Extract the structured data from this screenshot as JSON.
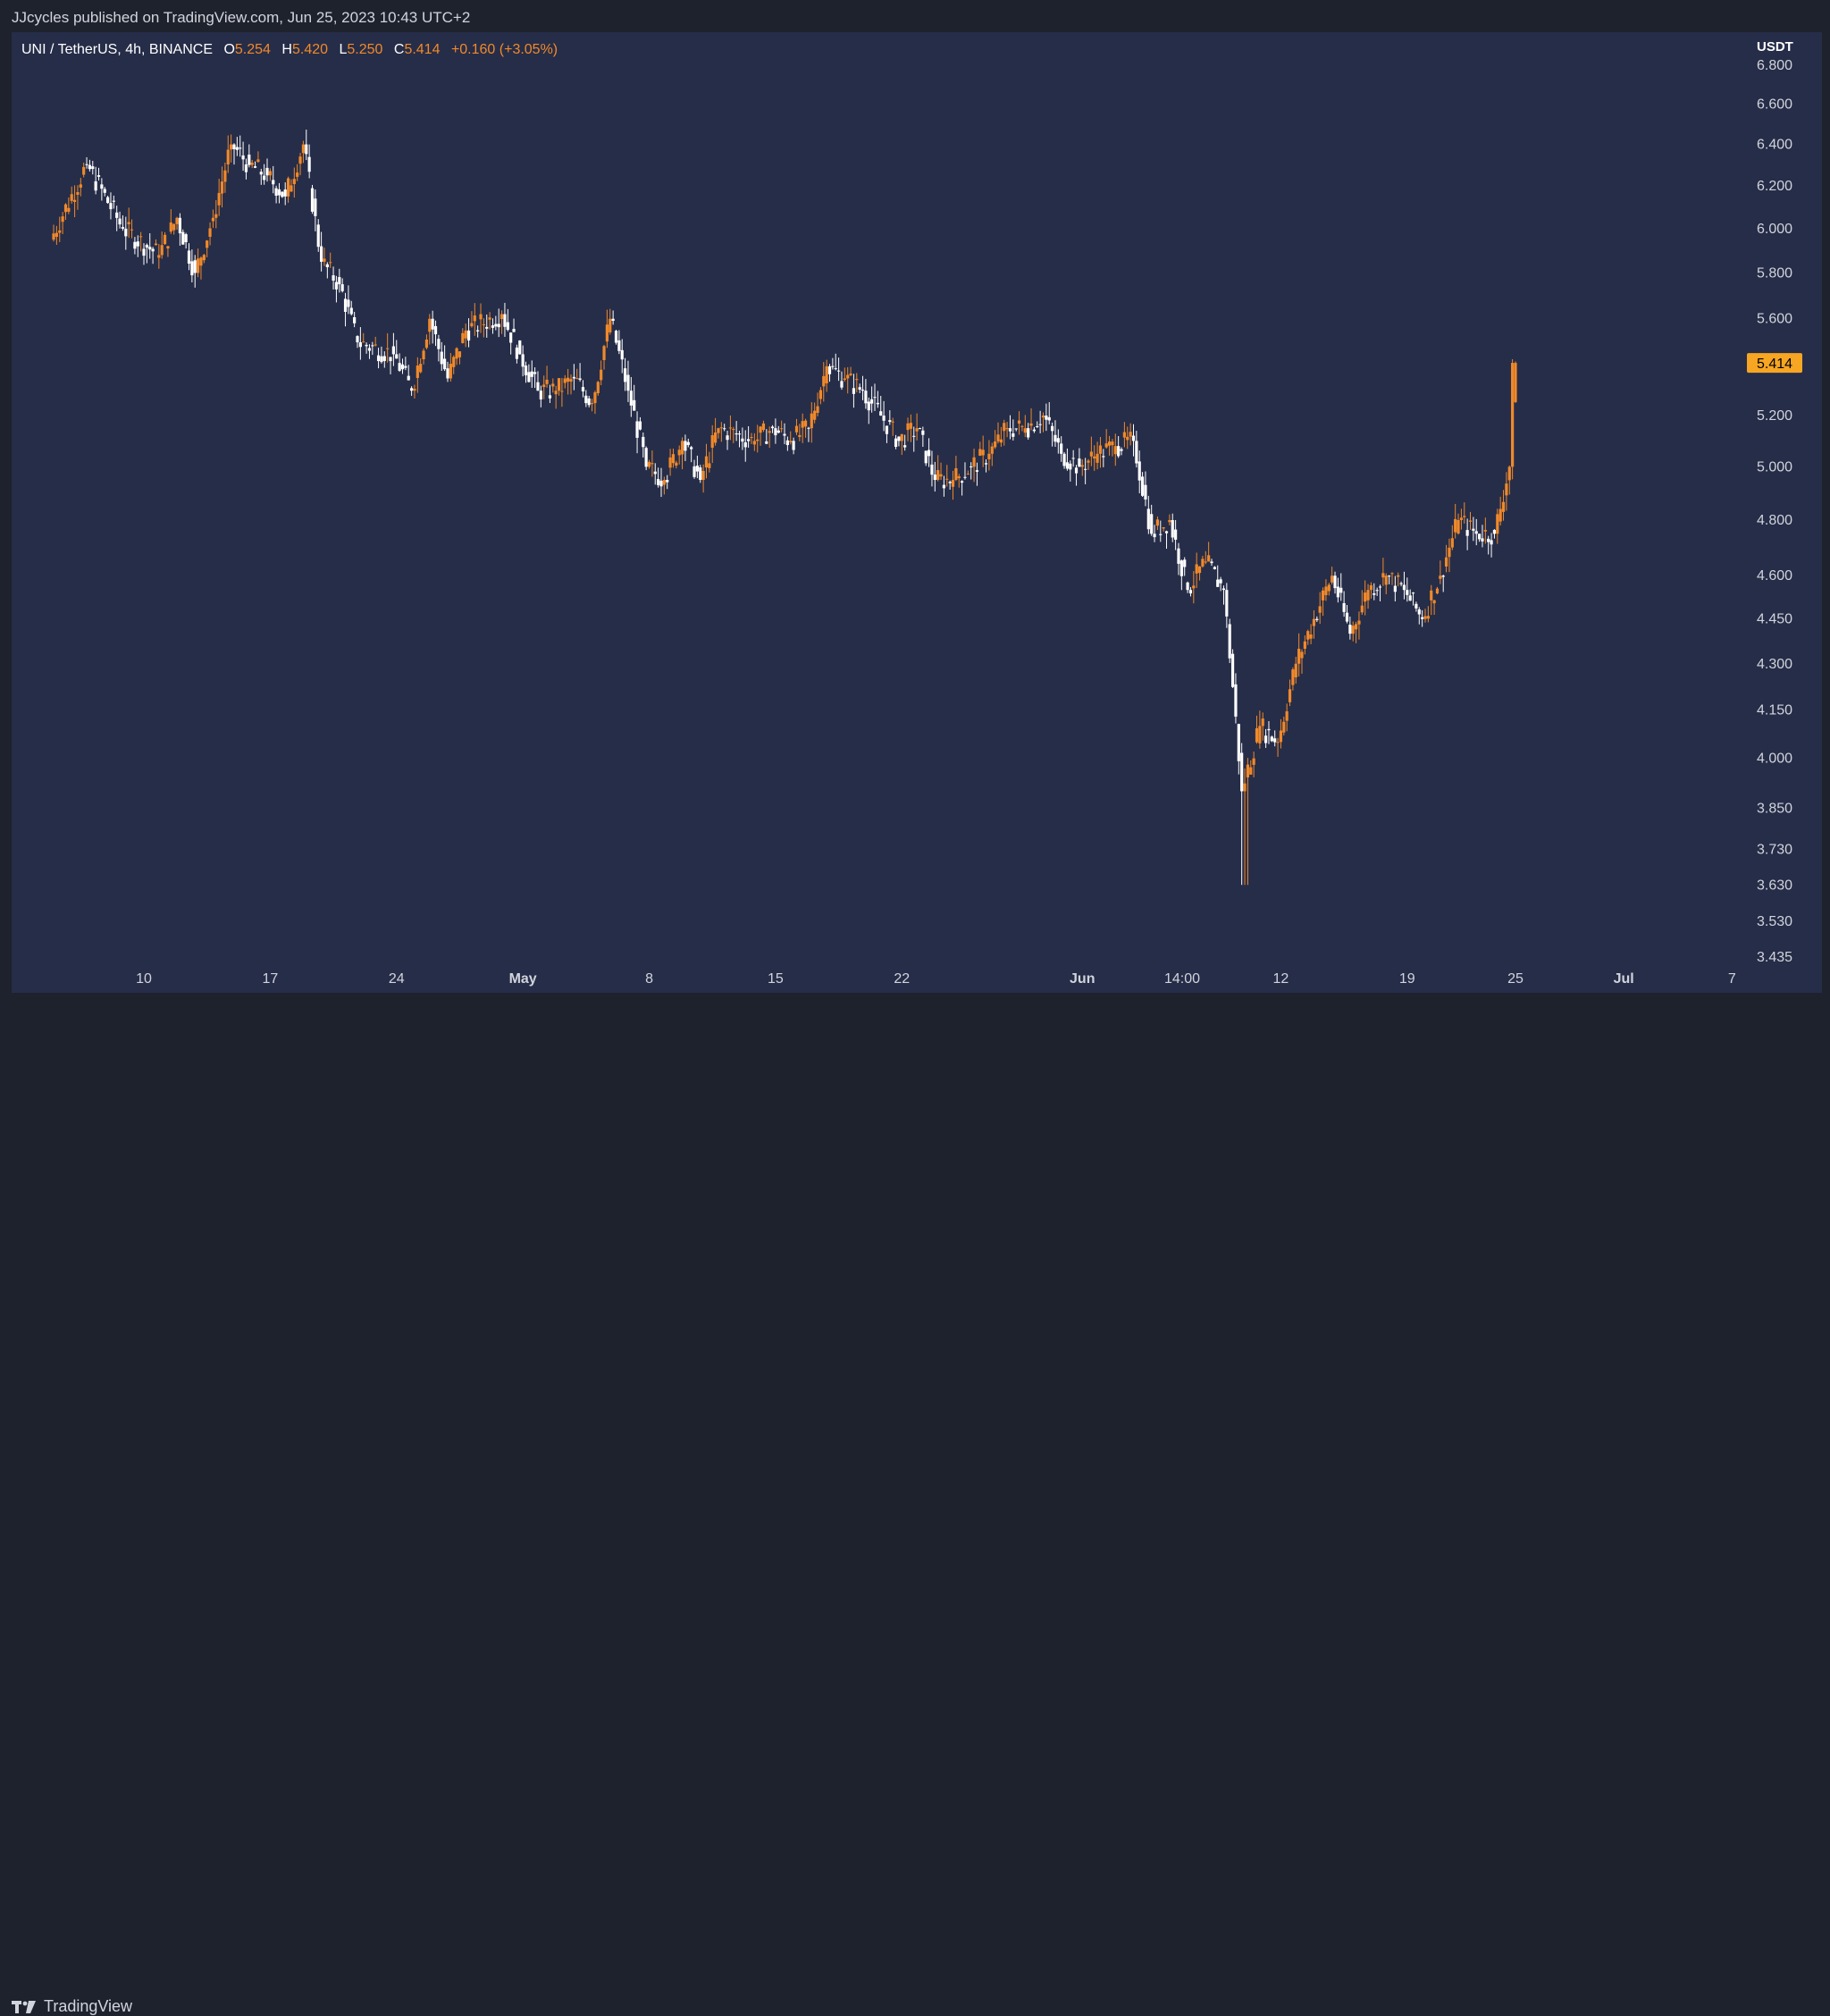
{
  "header": {
    "publisher_line": "JJcycles published on TradingView.com, Jun 25, 2023 10:43 UTC+2"
  },
  "legend": {
    "symbol": "UNI / TetherUS, 4h, BINANCE",
    "open_label": "O",
    "open": "5.254",
    "high_label": "H",
    "high": "5.420",
    "low_label": "L",
    "low": "5.250",
    "close_label": "C",
    "close": "5.414",
    "change": "+0.160 (+3.05%)"
  },
  "price_axis": {
    "unit": "USDT",
    "last_price_label": "5.414"
  },
  "footer": {
    "brand": "TradingView",
    "logo_icon": "tradingview-logo-icon"
  },
  "colors": {
    "background": "#262d48",
    "up_candle": "#f0892b",
    "down_candle": "#ffffff",
    "last_price_badge": "#f6a623"
  },
  "chart_data": {
    "type": "candlestick",
    "interval": "4h",
    "yscale": "log",
    "ylim": [
      3.435,
      6.8
    ],
    "y_ticks": [
      "6.800",
      "6.600",
      "6.400",
      "6.200",
      "6.000",
      "5.800",
      "5.600",
      "5.414",
      "5.200",
      "5.000",
      "4.800",
      "4.600",
      "4.450",
      "4.300",
      "4.150",
      "4.000",
      "3.850",
      "3.730",
      "3.630",
      "3.530",
      "3.435"
    ],
    "x_ticks": [
      "10",
      "17",
      "24",
      "May",
      "8",
      "15",
      "22",
      "Jun",
      "14:00",
      "12",
      "19",
      "25",
      "Jul",
      "7"
    ],
    "last_price": 5.414,
    "ohlc_keypoints": [
      {
        "t": "Apr 5",
        "close": 5.95
      },
      {
        "t": "Apr 7",
        "close": 6.3
      },
      {
        "t": "Apr 9",
        "close": 6.0
      },
      {
        "t": "Apr 11",
        "close": 5.88
      },
      {
        "t": "Apr 12",
        "close": 6.05
      },
      {
        "t": "Apr 13",
        "close": 5.8
      },
      {
        "t": "Apr 14",
        "close": 6.05
      },
      {
        "t": "Apr 15",
        "close": 6.4
      },
      {
        "t": "Apr 16",
        "close": 6.3
      },
      {
        "t": "Apr 17",
        "close": 6.25
      },
      {
        "t": "Apr 18",
        "close": 6.15
      },
      {
        "t": "Apr 19",
        "close": 6.4
      },
      {
        "t": "Apr 20",
        "close": 5.85
      },
      {
        "t": "Apr 21",
        "close": 5.75
      },
      {
        "t": "Apr 22",
        "close": 5.5
      },
      {
        "t": "Apr 24",
        "close": 5.45
      },
      {
        "t": "Apr 25",
        "close": 5.3
      },
      {
        "t": "Apr 26",
        "close": 5.6
      },
      {
        "t": "Apr 27",
        "close": 5.35
      },
      {
        "t": "Apr 28",
        "close": 5.55
      },
      {
        "t": "Apr 30",
        "close": 5.62
      },
      {
        "t": "May 1",
        "close": 5.45
      },
      {
        "t": "May 2",
        "close": 5.3
      },
      {
        "t": "May 3",
        "close": 5.3
      },
      {
        "t": "May 4",
        "close": 5.35
      },
      {
        "t": "May 5",
        "close": 5.25
      },
      {
        "t": "May 6",
        "close": 5.6
      },
      {
        "t": "May 7",
        "close": 5.3
      },
      {
        "t": "May 8",
        "close": 5.0
      },
      {
        "t": "May 9",
        "close": 4.95
      },
      {
        "t": "May 10",
        "close": 5.1
      },
      {
        "t": "May 11",
        "close": 4.95
      },
      {
        "t": "May 12",
        "close": 5.15
      },
      {
        "t": "May 14",
        "close": 5.1
      },
      {
        "t": "May 15",
        "close": 5.15
      },
      {
        "t": "May 16",
        "close": 5.1
      },
      {
        "t": "May 17",
        "close": 5.15
      },
      {
        "t": "May 18",
        "close": 5.4
      },
      {
        "t": "May 19",
        "close": 5.35
      },
      {
        "t": "May 20",
        "close": 5.3
      },
      {
        "t": "May 21",
        "close": 5.2
      },
      {
        "t": "May 22",
        "close": 5.1
      },
      {
        "t": "May 23",
        "close": 5.15
      },
      {
        "t": "May 24",
        "close": 4.95
      },
      {
        "t": "May 25",
        "close": 4.95
      },
      {
        "t": "May 26",
        "close": 5.0
      },
      {
        "t": "May 27",
        "close": 5.05
      },
      {
        "t": "May 28",
        "close": 5.15
      },
      {
        "t": "May 29",
        "close": 5.15
      },
      {
        "t": "May 30",
        "close": 5.2
      },
      {
        "t": "May 31",
        "close": 5.05
      },
      {
        "t": "Jun 1",
        "close": 5.0
      },
      {
        "t": "Jun 2",
        "close": 5.05
      },
      {
        "t": "Jun 3",
        "close": 5.08
      },
      {
        "t": "Jun 4",
        "close": 5.1
      },
      {
        "t": "Jun 5",
        "close": 4.75
      },
      {
        "t": "Jun 6",
        "close": 4.8
      },
      {
        "t": "Jun 7",
        "close": 4.55
      },
      {
        "t": "Jun 8",
        "close": 4.65
      },
      {
        "t": "Jun 9",
        "close": 4.55
      },
      {
        "t": "Jun 10",
        "close": 3.9
      },
      {
        "t": "Jun 11",
        "close": 4.1
      },
      {
        "t": "Jun 12",
        "close": 4.05
      },
      {
        "t": "Jun 13",
        "close": 4.3
      },
      {
        "t": "Jun 14",
        "close": 4.45
      },
      {
        "t": "Jun 15",
        "close": 4.6
      },
      {
        "t": "Jun 16",
        "close": 4.4
      },
      {
        "t": "Jun 17",
        "close": 4.55
      },
      {
        "t": "Jun 18",
        "close": 4.6
      },
      {
        "t": "Jun 19",
        "close": 4.55
      },
      {
        "t": "Jun 20",
        "close": 4.45
      },
      {
        "t": "Jun 21",
        "close": 4.6
      },
      {
        "t": "Jun 22",
        "close": 4.8
      },
      {
        "t": "Jun 23",
        "close": 4.75
      },
      {
        "t": "Jun 24",
        "close": 4.75
      },
      {
        "t": "Jun 24 20:00",
        "close": 5.0
      },
      {
        "t": "Jun 25",
        "close": 5.414
      }
    ]
  }
}
